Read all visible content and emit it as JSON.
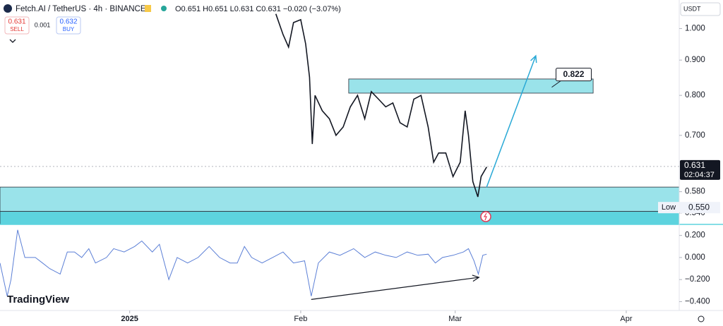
{
  "toolbar": {
    "symbol": "Fetch.AI / TetherUS · 4h · BINANCE",
    "ohlc": "O0.651 H0.651 L0.631 C0.631 −0.020 (−3.07%)",
    "sell_price": "0.631",
    "sell": "SELL",
    "spread": "0.001",
    "buy_price": "0.632",
    "buy": "BUY"
  },
  "branding": "TradingView",
  "chart_data": [
    {
      "type": "line",
      "currency": "USDT",
      "log_scale": true,
      "color": "#131722",
      "ylim": [
        0.52,
        1.1
      ],
      "yticks": [
        {
          "value": 1,
          "label": "1.000"
        },
        {
          "value": 0.9,
          "label": "0.900"
        },
        {
          "value": 0.8,
          "label": "0.800"
        },
        {
          "value": 0.7,
          "label": "0.700"
        },
        {
          "value": 0.58,
          "label": "0.580"
        },
        {
          "value": 0.54,
          "label": "0.540"
        }
      ],
      "x": [
        26.5,
        27.8,
        28.8,
        29.7,
        31,
        31.9,
        32.6,
        33.1,
        33.6,
        34.9,
        36.2,
        37.4,
        38.7,
        40,
        41.3,
        42.6,
        43.8,
        45.1,
        46.4,
        47.7,
        49,
        50.3,
        51.5,
        52.8,
        54.1,
        55.1,
        56,
        57.3,
        58.6,
        59.9,
        60.8,
        61.4,
        62.2,
        63.1,
        63.7,
        64.7
      ],
      "values": [
        1.05,
        0.98,
        0.94,
        1.02,
        1.03,
        0.95,
        0.85,
        0.68,
        0.8,
        0.76,
        0.74,
        0.7,
        0.72,
        0.77,
        0.8,
        0.74,
        0.81,
        0.79,
        0.77,
        0.78,
        0.73,
        0.72,
        0.79,
        0.8,
        0.72,
        0.64,
        0.66,
        0.66,
        0.61,
        0.64,
        0.76,
        0.7,
        0.6,
        0.57,
        0.61,
        0.63
      ],
      "last_price": {
        "value": 0.631,
        "label": "0.631"
      },
      "countdown": "02:04:37",
      "low": {
        "label": "Low",
        "value": 0.55,
        "value_label": "0.550"
      },
      "zones": [
        {
          "from": 0.806,
          "to": 0.845,
          "x": [
            39.7,
            84
          ],
          "color": "#9ae3ea"
        },
        {
          "from": 0.543,
          "to": 0.589,
          "x": [
            -23.5,
            99.6
          ],
          "color": "#9ae3ea"
        },
        {
          "from": 0.52,
          "to": 0.543,
          "x": [
            -23.5,
            99.6
          ],
          "color": "#5dd3de"
        }
      ],
      "arrow": {
        "x": [
          64.7,
          73.6
        ],
        "y": [
          0.589,
          0.913
        ],
        "color": "#29a9d6"
      },
      "target": {
        "x": 76.5,
        "value": 0.822,
        "label": "0.822"
      }
    },
    {
      "type": "line",
      "color": "#5b7fd6",
      "ylim": [
        -0.48,
        0.3
      ],
      "yticks": [
        {
          "value": 0.2,
          "label": "0.200"
        },
        {
          "value": 0,
          "label": "0.000"
        },
        {
          "value": -0.2,
          "label": "−0.200"
        },
        {
          "value": -0.4,
          "label": "−0.400"
        }
      ],
      "xlim": [
        -23.5,
        99.6
      ],
      "xticks": [
        {
          "value": 0,
          "label": "2025"
        },
        {
          "value": 31,
          "label": "Feb"
        },
        {
          "value": 59,
          "label": "Mar"
        },
        {
          "value": 90,
          "label": "Apr"
        }
      ],
      "x": [
        -23.5,
        -22.2,
        -21.5,
        -20.3,
        -19,
        -17.1,
        -15.8,
        -14.5,
        -12.6,
        -11.3,
        -10,
        -8.7,
        -7.4,
        -6.2,
        -4.2,
        -2.9,
        -1,
        0.9,
        2.2,
        4.1,
        5.4,
        7.1,
        8.6,
        10.5,
        12.4,
        14.4,
        16.3,
        18.2,
        19.5,
        20.8,
        22.1,
        24,
        25.9,
        27.8,
        29.7,
        31.7,
        32.9,
        34.2,
        36.2,
        38.1,
        40.6,
        42.6,
        44.5,
        46.4,
        48.3,
        50.3,
        52.2,
        54.1,
        55.4,
        56.7,
        58.6,
        60.5,
        61.4,
        62.4,
        63.2,
        64,
        64.7
      ],
      "values": [
        -0.05,
        -0.35,
        -0.2,
        0.25,
        0,
        0,
        -0.05,
        -0.1,
        -0.15,
        0.05,
        0.05,
        0,
        0.08,
        -0.05,
        0,
        0.08,
        0.05,
        0.1,
        0.15,
        0.05,
        0.12,
        -0.2,
        0,
        -0.05,
        0,
        0.1,
        0,
        -0.05,
        -0.05,
        0.1,
        0,
        -0.05,
        0,
        0.05,
        -0.05,
        -0.03,
        -0.35,
        -0.05,
        0.05,
        0.02,
        0.08,
        0,
        0.05,
        0.02,
        0,
        0.05,
        0.02,
        0.03,
        -0.05,
        0,
        0.02,
        0.05,
        0.08,
        -0.03,
        -0.15,
        0.02,
        0.03
      ],
      "arrow": {
        "x": [
          32.9,
          63.3
        ],
        "y": [
          -0.38,
          -0.18
        ],
        "color": "#131722"
      }
    }
  ]
}
